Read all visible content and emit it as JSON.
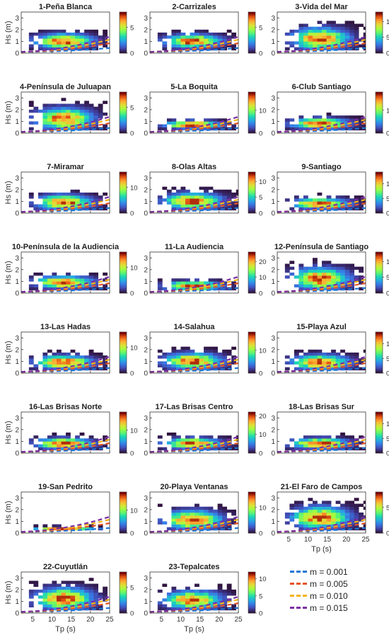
{
  "axis_labels": {
    "y": "Hs (m)",
    "x": "Tp (s)"
  },
  "legend": {
    "items": [
      {
        "label": "m = 0.001",
        "color": "#1f77d4"
      },
      {
        "label": "m = 0.005",
        "color": "#e4552a"
      },
      {
        "label": "m = 0.010",
        "color": "#f2b418"
      },
      {
        "label": "m = 0.015",
        "color": "#7b2fa3"
      }
    ]
  },
  "chart_data": {
    "type": "heatmap",
    "colormap": "turbo",
    "x_ticks": [
      5,
      10,
      15,
      20,
      25
    ],
    "y_ticks": [
      0,
      1,
      2,
      3
    ],
    "xlim": [
      2,
      25
    ],
    "ylim": [
      0,
      3.5
    ],
    "slopes": [
      0.001,
      0.005,
      0.01,
      0.015
    ],
    "panels": [
      {
        "title": "1-Peña Blanca",
        "cmax": 8,
        "cbar_ticks": [
          0,
          5
        ],
        "hs": 0.9,
        "h_spread": 0.55,
        "x_end": 24
      },
      {
        "title": "2-Carrizales",
        "cmax": 8,
        "cbar_ticks": [
          0,
          5
        ],
        "hs": 0.9,
        "h_spread": 0.5,
        "x_end": 24
      },
      {
        "title": "3-Vida del Mar",
        "cmax": 13,
        "cbar_ticks": [
          0,
          5,
          10
        ],
        "hs": 1.1,
        "h_spread": 0.8,
        "x_end": 25
      },
      {
        "title": "4-Península de Juluapan",
        "cmax": 8,
        "cbar_ticks": [
          0,
          5
        ],
        "hs": 1.1,
        "h_spread": 0.8,
        "x_end": 24
      },
      {
        "title": "5-La Boquita",
        "cmax": 18,
        "cbar_ticks": [
          0,
          10
        ],
        "hs": 0.6,
        "h_spread": 0.3,
        "x_end": 24
      },
      {
        "title": "6-Club Santiago",
        "cmax": 18,
        "cbar_ticks": [
          0,
          10
        ],
        "hs": 0.7,
        "h_spread": 0.4,
        "x_end": 25
      },
      {
        "title": "7-Miramar",
        "cmax": 16,
        "cbar_ticks": [
          0,
          10
        ],
        "hs": 0.8,
        "h_spread": 0.55,
        "x_end": 24
      },
      {
        "title": "8-Olas Altas",
        "cmax": 13,
        "cbar_ticks": [
          0,
          5,
          10
        ],
        "hs": 0.9,
        "h_spread": 0.6,
        "x_end": 25
      },
      {
        "title": "9-Santiago",
        "cmax": 14,
        "cbar_ticks": [
          0,
          5,
          10
        ],
        "hs": 0.7,
        "h_spread": 0.4,
        "x_end": 25
      },
      {
        "title": "10-Península de la Audiencia",
        "cmax": 16,
        "cbar_ticks": [
          0,
          10
        ],
        "hs": 0.8,
        "h_spread": 0.45,
        "x_end": 24
      },
      {
        "title": "11-La Audiencia",
        "cmax": 26,
        "cbar_ticks": [
          0,
          10,
          20
        ],
        "hs": 0.5,
        "h_spread": 0.35,
        "x_end": 24
      },
      {
        "title": "12-Península de Santiago",
        "cmax": 13,
        "cbar_ticks": [
          0,
          5,
          10
        ],
        "hs": 1.1,
        "h_spread": 0.8,
        "x_end": 24
      },
      {
        "title": "13-Las Hadas",
        "cmax": 16,
        "cbar_ticks": [
          0,
          10
        ],
        "hs": 0.8,
        "h_spread": 0.5,
        "x_end": 24
      },
      {
        "title": "14-Salahua",
        "cmax": 18,
        "cbar_ticks": [
          0,
          10
        ],
        "hs": 0.9,
        "h_spread": 0.6,
        "x_end": 24
      },
      {
        "title": "15-Playa Azul",
        "cmax": 14,
        "cbar_ticks": [
          0,
          5,
          10
        ],
        "hs": 0.8,
        "h_spread": 0.55,
        "x_end": 25
      },
      {
        "title": "16-Las Brisas Norte",
        "cmax": 18,
        "cbar_ticks": [
          0,
          10
        ],
        "hs": 0.7,
        "h_spread": 0.4,
        "x_end": 24
      },
      {
        "title": "17-Las Brisas Centro",
        "cmax": 22,
        "cbar_ticks": [
          0,
          10,
          20
        ],
        "hs": 0.7,
        "h_spread": 0.4,
        "x_end": 25
      },
      {
        "title": "18-Las Brisas Sur",
        "cmax": 14,
        "cbar_ticks": [
          0,
          5,
          10
        ],
        "hs": 0.7,
        "h_spread": 0.4,
        "x_end": 25
      },
      {
        "title": "19-San Pedrito",
        "cmax": 18,
        "cbar_ticks": [
          0,
          10
        ],
        "hs": 0.25,
        "h_spread": 0.15,
        "x_end": 23
      },
      {
        "title": "20-Playa Ventanas",
        "cmax": 16,
        "cbar_ticks": [
          0,
          10
        ],
        "hs": 1.0,
        "h_spread": 0.7,
        "x_end": 24
      },
      {
        "title": "21-El Faro de Campos",
        "cmax": 8,
        "cbar_ticks": [
          0,
          5
        ],
        "hs": 1.2,
        "h_spread": 0.8,
        "x_end": 25
      },
      {
        "title": "22-Cuyutlán",
        "cmax": 8,
        "cbar_ticks": [
          0,
          5
        ],
        "hs": 1.1,
        "h_spread": 0.8,
        "x_end": 24
      },
      {
        "title": "23-Tepalcates",
        "cmax": 12,
        "cbar_ticks": [
          0,
          5,
          10
        ],
        "hs": 1.0,
        "h_spread": 0.65,
        "x_end": 24
      }
    ]
  }
}
